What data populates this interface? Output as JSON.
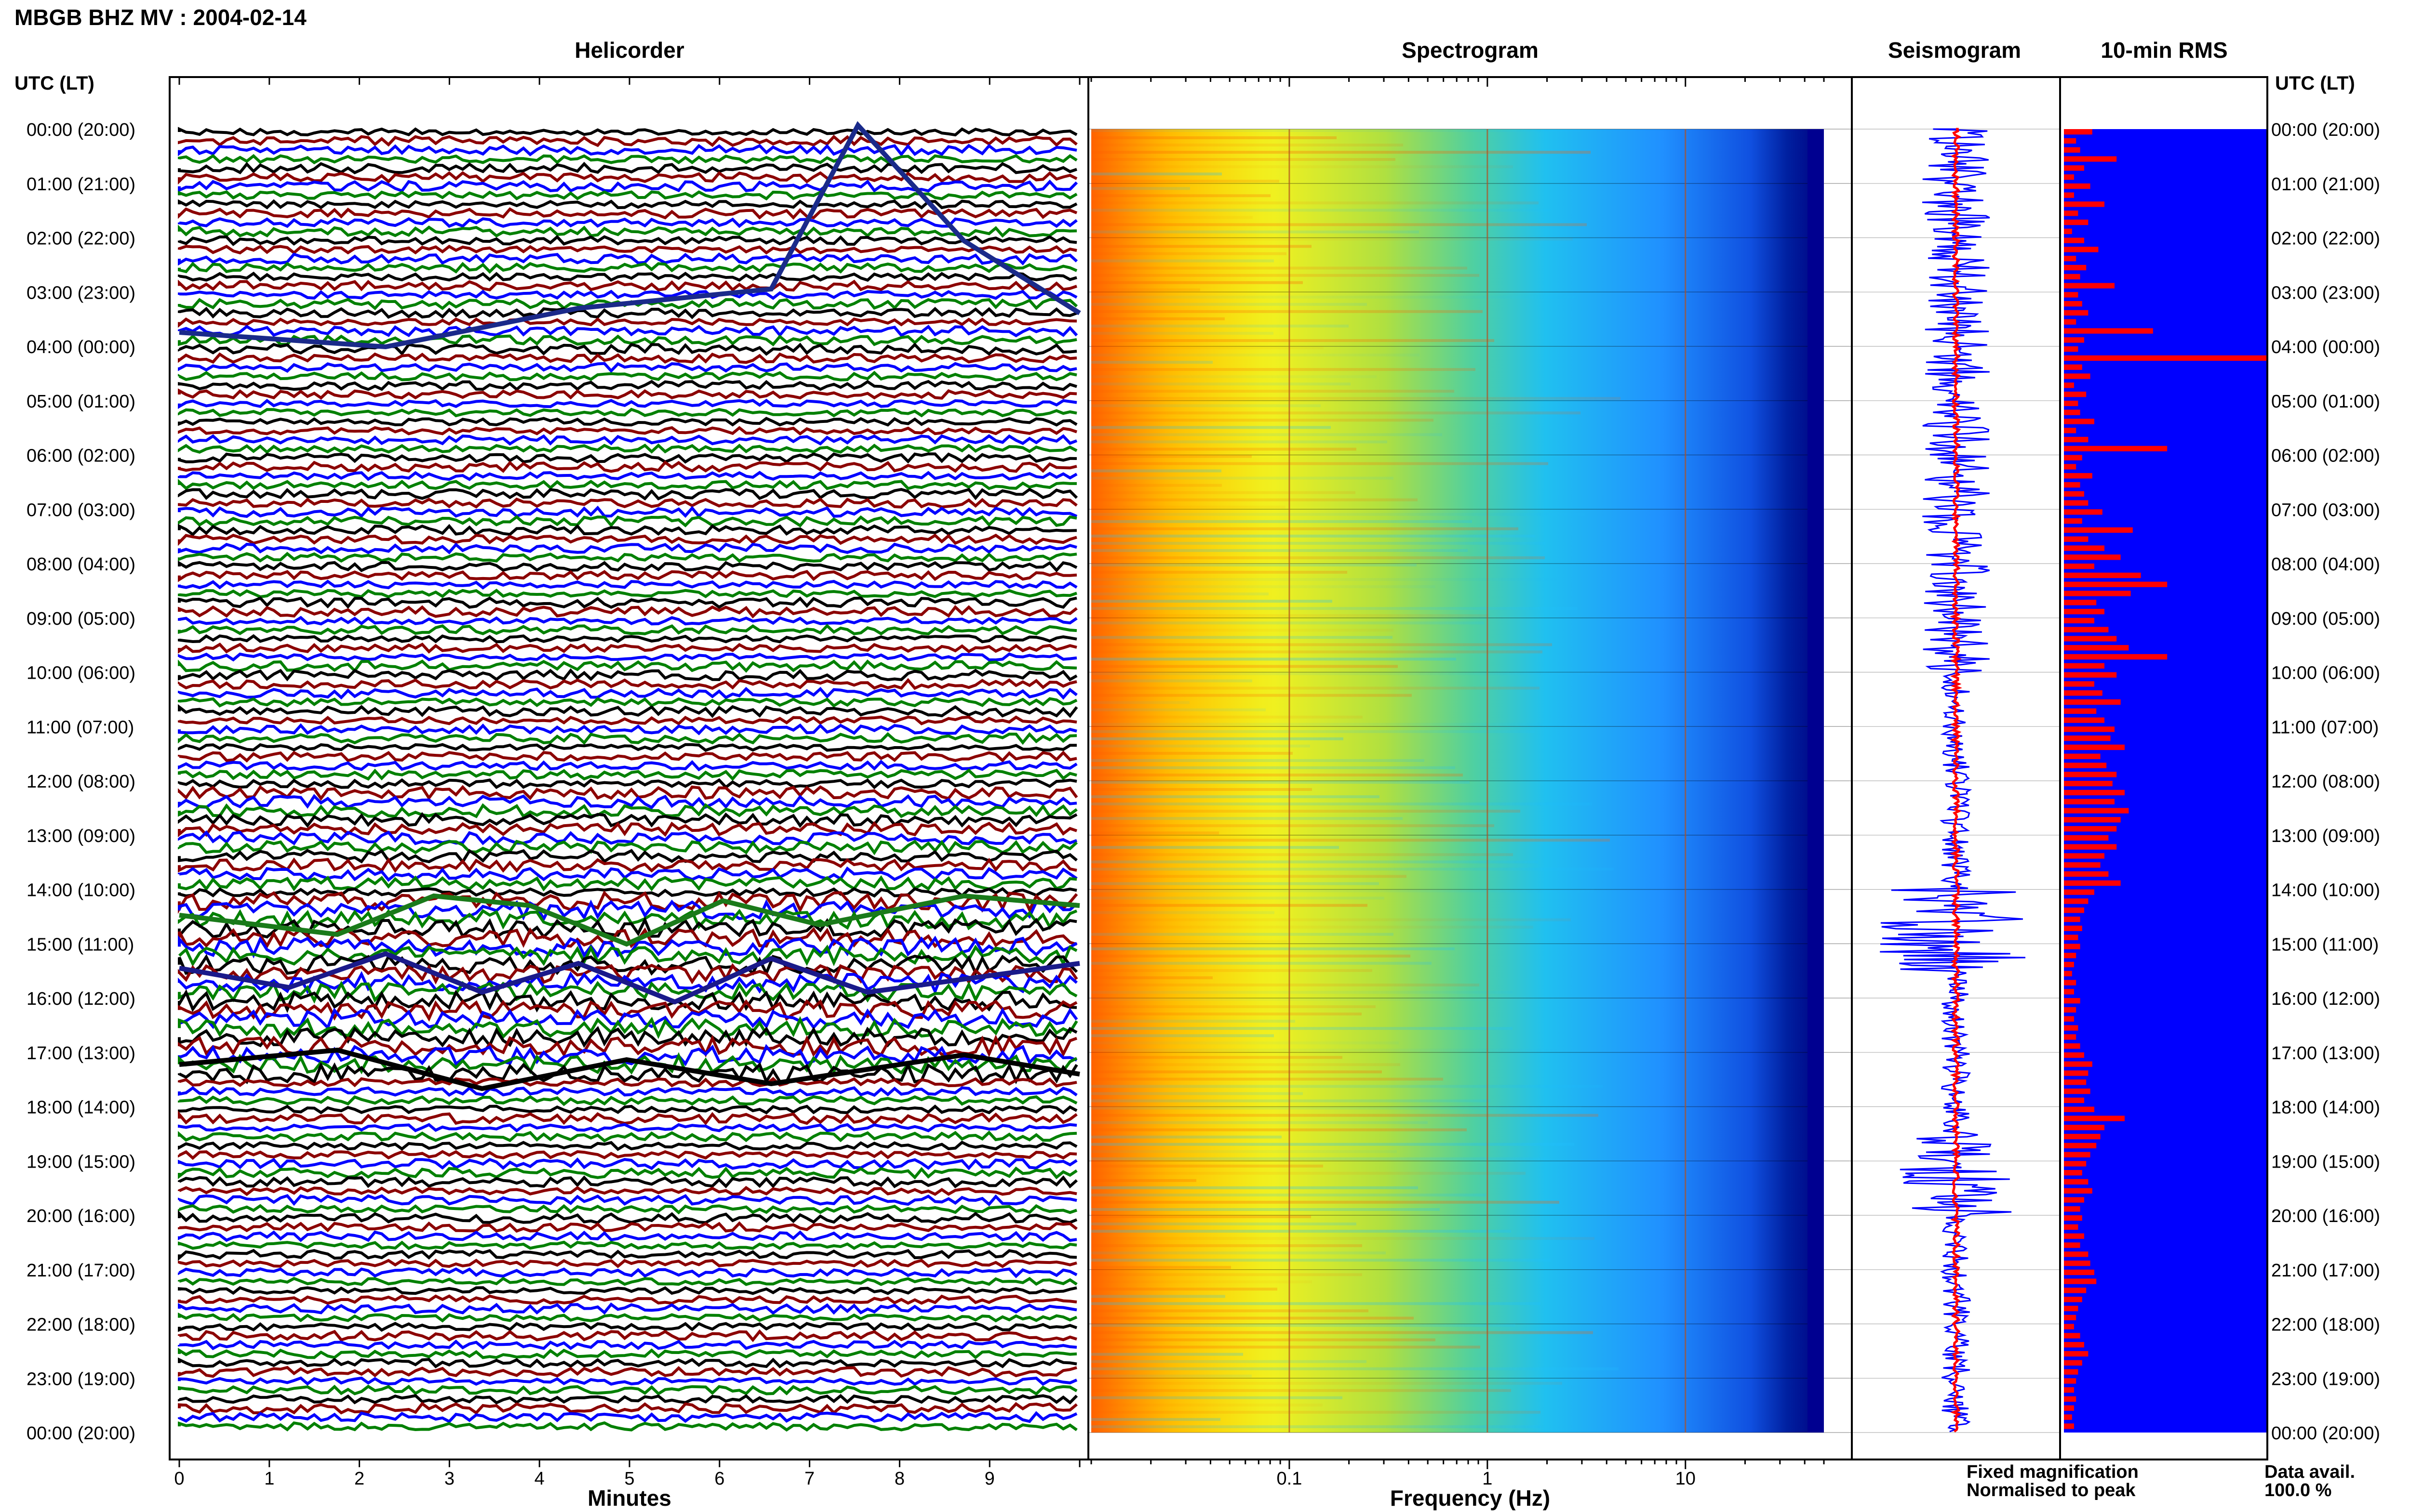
{
  "header": {
    "station": "MBGB BHZ MV : 2004-02-14"
  },
  "panels": {
    "helicorder": "Helicorder",
    "spectrogram": "Spectrogram",
    "seismogram": "Seismogram",
    "rms": "10-min RMS"
  },
  "axis": {
    "time_label_left": "UTC (LT)",
    "time_label_right": "UTC (LT)",
    "minutes_label": "Minutes",
    "frequency_label": "Frequency (Hz)"
  },
  "legend": {
    "fixed": "Fixed magnification",
    "normalised": "Normalised to peak",
    "fixed_color": "#0000ff",
    "normalised_color": "#ff0000"
  },
  "data_availability": {
    "label": "Data avail.",
    "value": "100.0 %"
  },
  "colors": {
    "helicorder_traces": [
      "#000000",
      "#8b0000",
      "#0000ff",
      "#008000"
    ],
    "rms_background": "#0000ff",
    "rms_bars": "#ff0000",
    "spectrogram_colormap": [
      "#ff0000",
      "#ffa000",
      "#ffff00",
      "#60e060",
      "#20c0ff",
      "#2060ff",
      "#000090"
    ]
  },
  "chart_data": [
    {
      "type": "line",
      "title": "Helicorder",
      "xlabel": "Minutes",
      "xticks": [
        "0",
        "1",
        "2",
        "3",
        "4",
        "5",
        "6",
        "7",
        "8",
        "9"
      ],
      "xlim": [
        0,
        10
      ],
      "time_ticks": [
        "00:00 (20:00)",
        "01:00 (21:00)",
        "02:00 (22:00)",
        "03:00 (23:00)",
        "04:00 (00:00)",
        "05:00 (01:00)",
        "06:00 (02:00)",
        "07:00 (03:00)",
        "08:00 (04:00)",
        "09:00 (05:00)",
        "10:00 (06:00)",
        "11:00 (07:00)",
        "12:00 (08:00)",
        "13:00 (09:00)",
        "14:00 (10:00)",
        "15:00 (11:00)",
        "16:00 (12:00)",
        "17:00 (13:00)",
        "18:00 (14:00)",
        "19:00 (15:00)",
        "20:00 (16:00)",
        "21:00 (17:00)",
        "22:00 (18:00)",
        "23:00 (19:00)",
        "00:00 (20:00)"
      ],
      "rows": 144
    },
    {
      "type": "heatmap",
      "title": "Spectrogram",
      "xlabel": "Frequency (Hz)",
      "xscale": "log",
      "xticks": [
        "0.1",
        "1",
        "10"
      ],
      "xlim": [
        0.01,
        50
      ]
    },
    {
      "type": "line",
      "title": "Seismogram",
      "series": [
        {
          "name": "Fixed magnification",
          "color": "#0000ff"
        },
        {
          "name": "Normalised to peak",
          "color": "#ff0000"
        }
      ]
    },
    {
      "type": "bar",
      "title": "10-min RMS",
      "orientation": "horizontal",
      "count": 144,
      "relative_values": [
        0.14,
        0.06,
        0.08,
        0.26,
        0.1,
        0.05,
        0.13,
        0.05,
        0.2,
        0.07,
        0.12,
        0.04,
        0.1,
        0.17,
        0.06,
        0.11,
        0.08,
        0.25,
        0.07,
        0.09,
        0.12,
        0.06,
        0.44,
        0.1,
        0.07,
        1.0,
        0.09,
        0.13,
        0.05,
        0.11,
        0.07,
        0.08,
        0.15,
        0.06,
        0.12,
        0.51,
        0.09,
        0.06,
        0.14,
        0.08,
        0.1,
        0.12,
        0.19,
        0.09,
        0.34,
        0.12,
        0.2,
        0.28,
        0.15,
        0.38,
        0.51,
        0.33,
        0.16,
        0.2,
        0.15,
        0.22,
        0.26,
        0.32,
        0.51,
        0.2,
        0.26,
        0.15,
        0.19,
        0.28,
        0.16,
        0.2,
        0.25,
        0.23,
        0.3,
        0.18,
        0.21,
        0.26,
        0.24,
        0.3,
        0.25,
        0.32,
        0.28,
        0.26,
        0.22,
        0.26,
        0.2,
        0.18,
        0.22,
        0.28,
        0.15,
        0.12,
        0.1,
        0.08,
        0.09,
        0.07,
        0.08,
        0.06,
        0.05,
        0.04,
        0.06,
        0.05,
        0.08,
        0.06,
        0.05,
        0.07,
        0.06,
        0.08,
        0.1,
        0.14,
        0.12,
        0.11,
        0.13,
        0.1,
        0.15,
        0.3,
        0.2,
        0.18,
        0.16,
        0.13,
        0.11,
        0.09,
        0.12,
        0.14,
        0.1,
        0.08,
        0.09,
        0.07,
        0.1,
        0.08,
        0.12,
        0.13,
        0.15,
        0.16,
        0.11,
        0.09,
        0.07,
        0.06,
        0.05,
        0.08,
        0.1,
        0.12,
        0.09,
        0.07,
        0.06,
        0.05,
        0.06,
        0.05,
        0.04,
        0.05
      ]
    }
  ]
}
